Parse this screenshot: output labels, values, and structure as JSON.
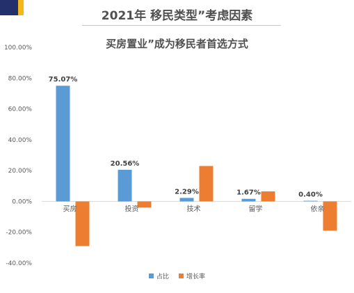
{
  "header": {
    "title": "2021年 移民类型”考虑因素",
    "subtitle": "买房置业”成为移民者首选方式"
  },
  "colors": {
    "share": "#5b9bd5",
    "growth": "#ed7d31"
  },
  "chart_data": {
    "type": "bar",
    "categories": [
      "买房",
      "投资",
      "技术",
      "留学",
      "依亲"
    ],
    "series": [
      {
        "name": "占比",
        "values": [
          75.07,
          20.56,
          2.29,
          1.67,
          0.4
        ],
        "labels": [
          "75.07%",
          "20.56%",
          "2.29%",
          "1.67%",
          "0.40%"
        ]
      },
      {
        "name": "增长率",
        "values": [
          -29,
          -4,
          23,
          6.5,
          -19
        ]
      }
    ],
    "yticks": [
      "100.00%",
      "80.00%",
      "60.00%",
      "40.00%",
      "20.00%",
      "0.00%",
      "-20.00%",
      "-40.00%"
    ],
    "ylim": [
      -40,
      100
    ],
    "legend": "bottom",
    "grid": false
  }
}
